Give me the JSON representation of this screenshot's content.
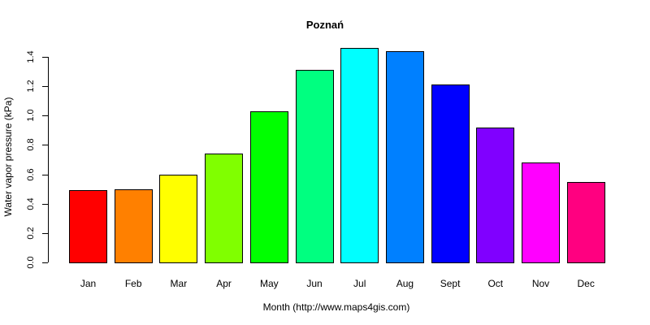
{
  "chart_data": {
    "type": "bar",
    "title": "Poznań",
    "xlabel": "Month (http://www.maps4gis.com)",
    "ylabel": "Water vapor pressure (kPa)",
    "ylim": [
      0,
      1.4
    ],
    "yticks": [
      "0.0",
      "0.2",
      "0.4",
      "0.6",
      "0.8",
      "1.0",
      "1.2",
      "1.4"
    ],
    "grid": false,
    "categories": [
      "Jan",
      "Feb",
      "Mar",
      "Apr",
      "May",
      "Jun",
      "Jul",
      "Aug",
      "Sept",
      "Oct",
      "Nov",
      "Dec"
    ],
    "values": [
      0.49,
      0.5,
      0.6,
      0.74,
      1.03,
      1.31,
      1.46,
      1.44,
      1.21,
      0.92,
      0.68,
      0.55
    ],
    "colors": [
      "#FF0000",
      "#FF8000",
      "#FFFF00",
      "#80FF00",
      "#00FF00",
      "#00FF80",
      "#00FFFF",
      "#0080FF",
      "#0000FF",
      "#8000FF",
      "#FF00FF",
      "#FF0080"
    ]
  }
}
